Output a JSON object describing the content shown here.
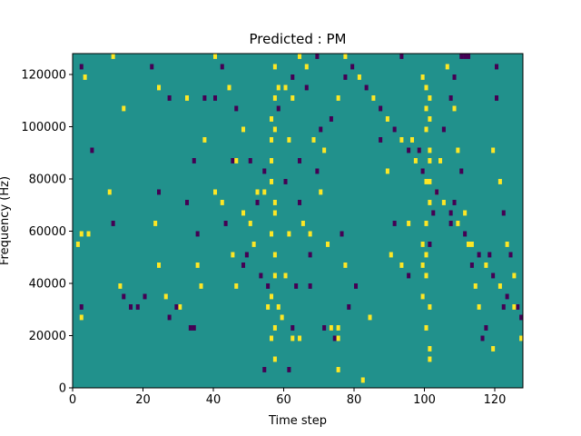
{
  "chart_data": {
    "type": "heatmap",
    "title": "Predicted : PM",
    "xlabel": "Time step",
    "ylabel": "Frequency (Hz)",
    "xlim": [
      0,
      128
    ],
    "ylim": [
      0,
      128000
    ],
    "xticks": [
      0,
      20,
      40,
      60,
      80,
      100,
      120
    ],
    "yticks": [
      0,
      20000,
      40000,
      60000,
      80000,
      100000,
      120000
    ],
    "n_time_steps": 128,
    "n_frequency_bins": 64,
    "bin_height_hz": 2000,
    "levels": {
      "low": -1,
      "background": 0,
      "high": 1
    },
    "colors": {
      "low": "#440154",
      "background": "#21918c",
      "high": "#fde725"
    },
    "low_cells": [
      [
        1,
        123
      ],
      [
        12,
        111
      ],
      [
        22,
        123
      ],
      [
        26,
        105
      ],
      [
        33,
        11
      ],
      [
        34,
        11
      ],
      [
        35,
        75
      ],
      [
        43,
        123
      ],
      [
        53,
        71
      ],
      [
        74,
        123
      ],
      [
        77,
        103
      ],
      [
        93,
        63
      ],
      [
        101,
        27
      ],
      [
        103,
        119
      ],
      [
        108,
        59
      ],
      [
        110,
        63
      ],
      [
        111,
        63
      ],
      [
        112,
        63
      ],
      [
        120,
        61
      ],
      [
        108,
        35
      ],
      [
        107,
        31
      ],
      [
        118,
        25
      ],
      [
        122,
        15
      ],
      [
        116,
        9
      ],
      [
        99,
        95
      ],
      [
        93,
        75
      ],
      [
        73,
        11
      ],
      [
        74,
        9
      ]
    ],
    "high_cells": [
      [
        13,
        111
      ],
      [
        18,
        83
      ],
      [
        29,
        105
      ],
      [
        35,
        123
      ],
      [
        50,
        117
      ],
      [
        62,
        115
      ],
      [
        63,
        103
      ],
      [
        75,
        115
      ],
      [
        69,
        99
      ],
      [
        87,
        105
      ],
      [
        91,
        99
      ],
      [
        98,
        113
      ],
      [
        100,
        91
      ],
      [
        106,
        115
      ],
      [
        116,
        109
      ],
      [
        119,
        123
      ],
      [
        124,
        125
      ],
      [
        55,
        79
      ],
      [
        56,
        79
      ],
      [
        57,
        77
      ],
      [
        58,
        73
      ],
      [
        57,
        61
      ],
      [
        58,
        57
      ],
      [
        57,
        55
      ],
      [
        56,
        51
      ],
      [
        57,
        49
      ],
      [
        56,
        43
      ],
      [
        56,
        39
      ],
      [
        57,
        35
      ],
      [
        57,
        33
      ],
      [
        56,
        29
      ],
      [
        57,
        25
      ],
      [
        57,
        21
      ],
      [
        56,
        17
      ],
      [
        57,
        11
      ],
      [
        56,
        9
      ],
      [
        57,
        5
      ],
      [
        99,
        59
      ],
      [
        100,
        57
      ],
      [
        101,
        55
      ],
      [
        100,
        53
      ],
      [
        101,
        51
      ],
      [
        100,
        49
      ],
      [
        101,
        45
      ],
      [
        101,
        43
      ],
      [
        100,
        39
      ],
      [
        101,
        35
      ],
      [
        100,
        31
      ],
      [
        99,
        27
      ],
      [
        100,
        25
      ],
      [
        99,
        23
      ],
      [
        100,
        21
      ],
      [
        99,
        17
      ],
      [
        101,
        15
      ],
      [
        100,
        11
      ],
      [
        101,
        7
      ],
      [
        101,
        5
      ],
      [
        75,
        9
      ],
      [
        75,
        3
      ],
      [
        82,
        1
      ]
    ],
    "scatter_cells": [
      [
        2,
        -1,
        61
      ],
      [
        3,
        1,
        59
      ],
      [
        5,
        -1,
        45
      ],
      [
        2,
        1,
        29
      ],
      [
        4,
        1,
        29
      ],
      [
        1,
        1,
        27
      ],
      [
        2,
        -1,
        15
      ],
      [
        2,
        1,
        13
      ],
      [
        6,
        1,
        69
      ],
      [
        7,
        -1,
        67
      ],
      [
        9,
        1,
        67
      ],
      [
        11,
        1,
        63
      ],
      [
        14,
        1,
        53
      ],
      [
        11,
        -1,
        31
      ],
      [
        10,
        1,
        37
      ],
      [
        13,
        1,
        19
      ],
      [
        14,
        -1,
        17
      ],
      [
        16,
        -1,
        15
      ],
      [
        18,
        -1,
        15
      ],
      [
        20,
        -1,
        17
      ],
      [
        20,
        1,
        65
      ],
      [
        22,
        -1,
        61
      ],
      [
        24,
        1,
        57
      ],
      [
        27,
        -1,
        55
      ],
      [
        23,
        1,
        31
      ],
      [
        24,
        -1,
        37
      ],
      [
        24,
        1,
        23
      ],
      [
        26,
        1,
        17
      ],
      [
        30,
        1,
        15
      ],
      [
        27,
        -1,
        13
      ],
      [
        29,
        -1,
        15
      ],
      [
        31,
        1,
        65
      ],
      [
        32,
        1,
        55
      ],
      [
        34,
        -1,
        43
      ],
      [
        32,
        -1,
        35
      ],
      [
        35,
        1,
        23
      ],
      [
        35,
        -1,
        29
      ],
      [
        36,
        1,
        19
      ],
      [
        37,
        -1,
        55
      ],
      [
        37,
        1,
        47
      ],
      [
        40,
        -1,
        55
      ],
      [
        40,
        1,
        37
      ],
      [
        42,
        1,
        35
      ],
      [
        43,
        -1,
        31
      ],
      [
        45,
        1,
        25
      ],
      [
        46,
        1,
        19
      ],
      [
        45,
        -1,
        43
      ],
      [
        46,
        1,
        43
      ],
      [
        48,
        1,
        33
      ],
      [
        48,
        -1,
        23
      ],
      [
        49,
        -1,
        25
      ],
      [
        50,
        1,
        31
      ],
      [
        51,
        1,
        27
      ],
      [
        52,
        -1,
        35
      ],
      [
        54,
        1,
        37
      ],
      [
        53,
        -1,
        21
      ],
      [
        55,
        -1,
        19
      ],
      [
        55,
        1,
        15
      ],
      [
        54,
        -1,
        3
      ],
      [
        58,
        1,
        15
      ],
      [
        59,
        1,
        13
      ],
      [
        60,
        -1,
        39
      ],
      [
        60,
        1,
        21
      ],
      [
        61,
        1,
        29
      ],
      [
        61,
        1,
        47
      ],
      [
        62,
        1,
        55
      ],
      [
        64,
        -1,
        43
      ],
      [
        63,
        -1,
        19
      ],
      [
        64,
        -1,
        35
      ],
      [
        62,
        -1,
        11
      ],
      [
        62,
        1,
        9
      ],
      [
        64,
        1,
        9
      ],
      [
        61,
        -1,
        3
      ],
      [
        65,
        1,
        31
      ],
      [
        67,
        1,
        29
      ],
      [
        67,
        -1,
        25
      ],
      [
        67,
        -1,
        19
      ],
      [
        66,
        1,
        61
      ],
      [
        67,
        1,
        67
      ],
      [
        68,
        1,
        71
      ],
      [
        69,
        -1,
        63
      ],
      [
        70,
        -1,
        49
      ],
      [
        70,
        1,
        37
      ],
      [
        72,
        1,
        27
      ],
      [
        71,
        -1,
        11
      ],
      [
        73,
        1,
        11
      ],
      [
        75,
        1,
        11
      ],
      [
        76,
        -1,
        29
      ],
      [
        77,
        1,
        23
      ],
      [
        78,
        -1,
        15
      ],
      [
        80,
        -1,
        19
      ],
      [
        84,
        1,
        13
      ],
      [
        87,
        -1,
        47
      ],
      [
        89,
        1,
        41
      ],
      [
        90,
        1,
        25
      ],
      [
        91,
        -1,
        31
      ],
      [
        93,
        1,
        23
      ],
      [
        95,
        -1,
        21
      ],
      [
        95,
        1,
        31
      ],
      [
        96,
        1,
        47
      ],
      [
        98,
        -1,
        45
      ],
      [
        102,
        -1,
        33
      ],
      [
        103,
        1,
        37
      ],
      [
        104,
        1,
        43
      ],
      [
        105,
        -1,
        49
      ],
      [
        106,
        1,
        61
      ],
      [
        107,
        -1,
        55
      ],
      [
        108,
        1,
        53
      ],
      [
        109,
        1,
        45
      ],
      [
        110,
        -1,
        41
      ],
      [
        111,
        1,
        33
      ],
      [
        112,
        1,
        27
      ],
      [
        113,
        -1,
        23
      ],
      [
        114,
        1,
        19
      ],
      [
        115,
        1,
        15
      ],
      [
        117,
        -1,
        11
      ],
      [
        119,
        1,
        7
      ],
      [
        119,
        1,
        45
      ],
      [
        120,
        -1,
        55
      ],
      [
        121,
        1,
        39
      ],
      [
        122,
        -1,
        33
      ],
      [
        123,
        1,
        27
      ],
      [
        124,
        -1,
        25
      ],
      [
        125,
        1,
        21
      ],
      [
        126,
        -1,
        15
      ],
      [
        127,
        1,
        9
      ],
      [
        122,
        1,
        79
      ],
      [
        124,
        -1,
        87
      ],
      [
        126,
        1,
        91
      ],
      [
        121,
        -1,
        103
      ],
      [
        118,
        1,
        99
      ],
      [
        116,
        -1,
        97
      ],
      [
        114,
        1,
        87
      ],
      [
        112,
        -1,
        89
      ],
      [
        110,
        1,
        97
      ],
      [
        108,
        -1,
        101
      ],
      [
        106,
        1,
        89
      ],
      [
        104,
        -1,
        83
      ],
      [
        102,
        1,
        85
      ],
      [
        100,
        -1,
        79
      ],
      [
        98,
        1,
        81
      ],
      [
        96,
        -1,
        83
      ],
      [
        94,
        1,
        85
      ],
      [
        92,
        -1,
        87
      ],
      [
        90,
        1,
        91
      ],
      [
        88,
        -1,
        89
      ],
      [
        86,
        1,
        85
      ],
      [
        84,
        -1,
        75
      ],
      [
        83,
        1,
        69
      ],
      [
        81,
        -1,
        65
      ],
      [
        79,
        1,
        71
      ],
      [
        77,
        -1,
        59
      ],
      [
        75,
        1,
        55
      ],
      [
        73,
        -1,
        51
      ],
      [
        71,
        1,
        45
      ],
      [
        69,
        -1,
        41
      ],
      [
        68,
        1,
        47
      ],
      [
        66,
        -1,
        57
      ],
      [
        64,
        1,
        63
      ],
      [
        62,
        -1,
        59
      ],
      [
        60,
        1,
        57
      ],
      [
        58,
        -1,
        53
      ],
      [
        56,
        1,
        47
      ],
      [
        54,
        -1,
        41
      ],
      [
        52,
        1,
        37
      ],
      [
        50,
        -1,
        43
      ],
      [
        48,
        1,
        49
      ],
      [
        46,
        -1,
        53
      ],
      [
        44,
        1,
        57
      ],
      [
        42,
        -1,
        61
      ],
      [
        40,
        1,
        63
      ],
      [
        38,
        -1,
        69
      ],
      [
        36,
        1,
        73
      ],
      [
        34,
        -1,
        77
      ],
      [
        32,
        1,
        81
      ],
      [
        30,
        -1,
        83
      ],
      [
        28,
        1,
        85
      ],
      [
        26,
        -1,
        87
      ],
      [
        24,
        1,
        91
      ],
      [
        22,
        -1,
        93
      ],
      [
        20,
        1,
        95
      ],
      [
        18,
        -1,
        97
      ],
      [
        16,
        1,
        99
      ],
      [
        14,
        -1,
        101
      ],
      [
        12,
        1,
        103
      ],
      [
        10,
        -1,
        105
      ],
      [
        8,
        1,
        107
      ],
      [
        6,
        -1,
        109
      ],
      [
        4,
        1,
        111
      ],
      [
        3,
        -1,
        113
      ],
      [
        5,
        1,
        117
      ],
      [
        7,
        -1,
        119
      ],
      [
        9,
        1,
        121
      ],
      [
        11,
        -1,
        123
      ],
      [
        13,
        1,
        125
      ],
      [
        15,
        -1,
        127
      ],
      [
        17,
        1,
        125
      ],
      [
        19,
        -1,
        121
      ],
      [
        21,
        1,
        119
      ],
      [
        23,
        -1,
        117
      ],
      [
        25,
        1,
        115
      ],
      [
        27,
        -1,
        113
      ],
      [
        29,
        1,
        111
      ],
      [
        31,
        -1,
        109
      ],
      [
        33,
        1,
        107
      ],
      [
        35,
        -1,
        105
      ],
      [
        37,
        1,
        103
      ],
      [
        39,
        -1,
        101
      ],
      [
        41,
        1,
        99
      ],
      [
        43,
        -1,
        97
      ],
      [
        45,
        1,
        95
      ],
      [
        47,
        -1,
        93
      ],
      [
        49,
        1,
        91
      ],
      [
        51,
        -1,
        89
      ],
      [
        53,
        1,
        87
      ],
      [
        55,
        -1,
        85
      ],
      [
        57,
        1,
        83
      ],
      [
        59,
        -1,
        81
      ],
      [
        61,
        1,
        79
      ],
      [
        63,
        -1,
        77
      ],
      [
        65,
        1,
        75
      ],
      [
        67,
        -1,
        73
      ],
      [
        69,
        1,
        71
      ],
      [
        71,
        -1,
        69
      ],
      [
        73,
        1,
        67
      ],
      [
        75,
        -1,
        65
      ],
      [
        77,
        1,
        63
      ],
      [
        79,
        -1,
        61
      ],
      [
        81,
        1,
        59
      ],
      [
        83,
        -1,
        57
      ],
      [
        85,
        1,
        55
      ],
      [
        87,
        -1,
        53
      ],
      [
        89,
        1,
        51
      ],
      [
        91,
        -1,
        49
      ],
      [
        93,
        1,
        47
      ],
      [
        95,
        -1,
        45
      ],
      [
        97,
        1,
        43
      ],
      [
        99,
        -1,
        41
      ],
      [
        101,
        1,
        39
      ],
      [
        103,
        -1,
        37
      ],
      [
        105,
        1,
        35
      ],
      [
        107,
        -1,
        33
      ],
      [
        109,
        1,
        31
      ],
      [
        111,
        -1,
        29
      ],
      [
        113,
        1,
        27
      ],
      [
        115,
        -1,
        25
      ],
      [
        117,
        1,
        23
      ],
      [
        119,
        -1,
        21
      ],
      [
        121,
        1,
        19
      ],
      [
        123,
        -1,
        17
      ],
      [
        125,
        1,
        15
      ],
      [
        127,
        -1,
        13
      ]
    ]
  }
}
